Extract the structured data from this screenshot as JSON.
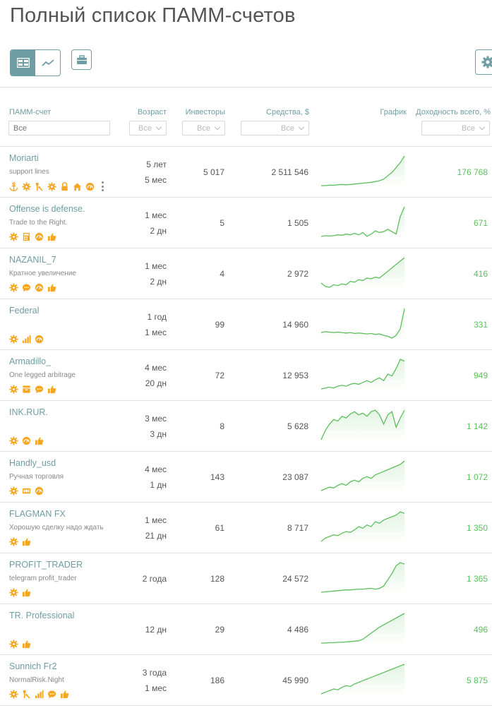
{
  "page_title": "Полный список ПАММ-счетов",
  "toolbar": {
    "table_view_icon": "table-icon",
    "chart_view_icon": "chart-line-icon",
    "portfolio_icon": "briefcase-icon",
    "settings_icon": "gear-icon"
  },
  "columns": {
    "account": {
      "label": "ПАММ-счет",
      "filter_placeholder": "Все"
    },
    "age": {
      "label": "Возраст",
      "filter_value": "Все"
    },
    "investors": {
      "label": "Инвесторы",
      "filter_value": "Все"
    },
    "funds": {
      "label": "Средства, $",
      "filter_value": "Все"
    },
    "chart": {
      "label": "График"
    },
    "yield": {
      "label": "Доходность всего, %",
      "filter_value": "Все"
    }
  },
  "colors": {
    "accent": "#6e9ea3",
    "icon": "#f5a623",
    "positive": "#5cbf5c",
    "spark": "#5cbf5c"
  },
  "rows": [
    {
      "name": "Moriarti",
      "desc": "support lines",
      "icons": [
        "anchor",
        "gear",
        "tools",
        "gear",
        "lock",
        "home",
        "gauge"
      ],
      "more": true,
      "age1": "5 лет",
      "age2": "5 мес",
      "investors": "5 017",
      "funds": "2 511 546",
      "yield": "176 768",
      "spark": [
        2,
        2,
        2.5,
        2.5,
        3,
        3.5,
        3,
        3.5,
        4,
        4.5,
        5,
        5.5,
        6,
        7,
        8,
        10,
        14,
        18,
        24,
        30,
        38
      ]
    },
    {
      "name": "Offense is defense.",
      "desc": "Trade to the Right.",
      "icons": [
        "gear",
        "calc",
        "gauge",
        "thumb"
      ],
      "more": false,
      "age1": "1 мес",
      "age2": "2 дн",
      "investors": "5",
      "funds": "1 505",
      "yield": "671",
      "spark": [
        3,
        4,
        3.5,
        4,
        5,
        4.5,
        6,
        5,
        7,
        5,
        8,
        3,
        6,
        10,
        8,
        9,
        12,
        9,
        6,
        28,
        40
      ]
    },
    {
      "name": "NAZANIL_7",
      "desc": "Кратное увеличение",
      "icons": [
        "gear",
        "chat",
        "gauge",
        "thumb"
      ],
      "more": false,
      "age1": "1 мес",
      "age2": "2 дн",
      "investors": "4",
      "funds": "2 972",
      "yield": "416",
      "spark": [
        10,
        6,
        5,
        8,
        7,
        9,
        8,
        12,
        11,
        14,
        13,
        16,
        15,
        17,
        16,
        20,
        24,
        28,
        32,
        36,
        40
      ]
    },
    {
      "name": "Federal",
      "desc": "",
      "icons": [
        "gear",
        "bars",
        "gauge"
      ],
      "more": false,
      "age1": "1 год",
      "age2": "1 мес",
      "investors": "99",
      "funds": "14 960",
      "yield": "331",
      "spark": [
        14,
        15,
        14.5,
        14,
        14.5,
        14,
        13.5,
        14,
        13,
        13.5,
        13,
        12.5,
        13,
        12,
        12.5,
        11,
        10,
        8,
        11,
        18,
        40
      ]
    },
    {
      "name": "Armadillo_",
      "desc": "One legged arbitrage",
      "icons": [
        "gear",
        "box",
        "chat",
        "thumb"
      ],
      "more": false,
      "age1": "4 мес",
      "age2": "20 дн",
      "investors": "72",
      "funds": "12 953",
      "yield": "949",
      "spark": [
        6,
        7,
        8,
        7,
        9,
        10,
        9,
        11,
        12,
        11,
        13,
        15,
        13,
        16,
        18,
        15,
        22,
        20,
        28,
        38,
        36
      ]
    },
    {
      "name": "INK.RUR.",
      "desc": "",
      "icons": [
        "gear",
        "gauge",
        "thumb"
      ],
      "more": false,
      "age1": "3 мес",
      "age2": "3 дн",
      "investors": "8",
      "funds": "5 628",
      "yield": "1 142",
      "spark": [
        2,
        14,
        22,
        28,
        26,
        32,
        30,
        35,
        38,
        34,
        36,
        32,
        38,
        40,
        34,
        22,
        34,
        38,
        18,
        30,
        40
      ]
    },
    {
      "name": "Handly_usd",
      "desc": "Ручная торговля",
      "icons": [
        "gear",
        "coins",
        "gauge"
      ],
      "more": false,
      "age1": "4 мес",
      "age2": "1 дн",
      "investors": "143",
      "funds": "23 087",
      "yield": "1 072",
      "spark": [
        6,
        8,
        10,
        9,
        12,
        14,
        12,
        16,
        18,
        16,
        20,
        22,
        20,
        24,
        26,
        28,
        30,
        32,
        34,
        36,
        40
      ]
    },
    {
      "name": "FLAGMAN FX",
      "desc": "Хорошую сделку надо ждать",
      "icons": [
        "gear",
        "thumb"
      ],
      "more": false,
      "age1": "1 мес",
      "age2": "21 дн",
      "investors": "61",
      "funds": "8 717",
      "yield": "1 350",
      "spark": [
        4,
        8,
        10,
        12,
        11,
        14,
        16,
        15,
        18,
        22,
        20,
        24,
        22,
        28,
        26,
        30,
        32,
        34,
        36,
        40,
        38
      ]
    },
    {
      "name": "PROFIT_TRADER",
      "desc": "telegram profit_trader",
      "icons": [
        "gear",
        "thumb"
      ],
      "more": false,
      "age1": "2 года",
      "age2": "",
      "investors": "128",
      "funds": "24 572",
      "yield": "1 365",
      "spark": [
        2,
        2.5,
        3,
        3.5,
        4,
        4.5,
        5,
        5,
        5.5,
        6,
        6,
        6.5,
        7,
        6,
        7,
        10,
        18,
        26,
        36,
        40,
        38
      ]
    },
    {
      "name": "TR. Professional",
      "desc": "",
      "icons": [
        "gear",
        "thumb"
      ],
      "more": false,
      "age1": "12 дн",
      "age2": "",
      "investors": "29",
      "funds": "4 486",
      "yield": "496",
      "spark": [
        3,
        3,
        3.5,
        3.5,
        4,
        4,
        4.5,
        5,
        5.5,
        6,
        8,
        12,
        16,
        20,
        24,
        27,
        30,
        33,
        36,
        39,
        42
      ]
    },
    {
      "name": "Sunnich Fr2",
      "desc": "NormalRisk.Night",
      "icons": [
        "gear",
        "tools",
        "bars",
        "chat",
        "thumb"
      ],
      "more": false,
      "age1": "3 года",
      "age2": "1 мес",
      "investors": "186",
      "funds": "45 990",
      "yield": "5 875",
      "spark": [
        4,
        6,
        8,
        10,
        9,
        12,
        14,
        13,
        16,
        18,
        20,
        22,
        24,
        26,
        28,
        30,
        32,
        34,
        36,
        38,
        40
      ]
    }
  ]
}
